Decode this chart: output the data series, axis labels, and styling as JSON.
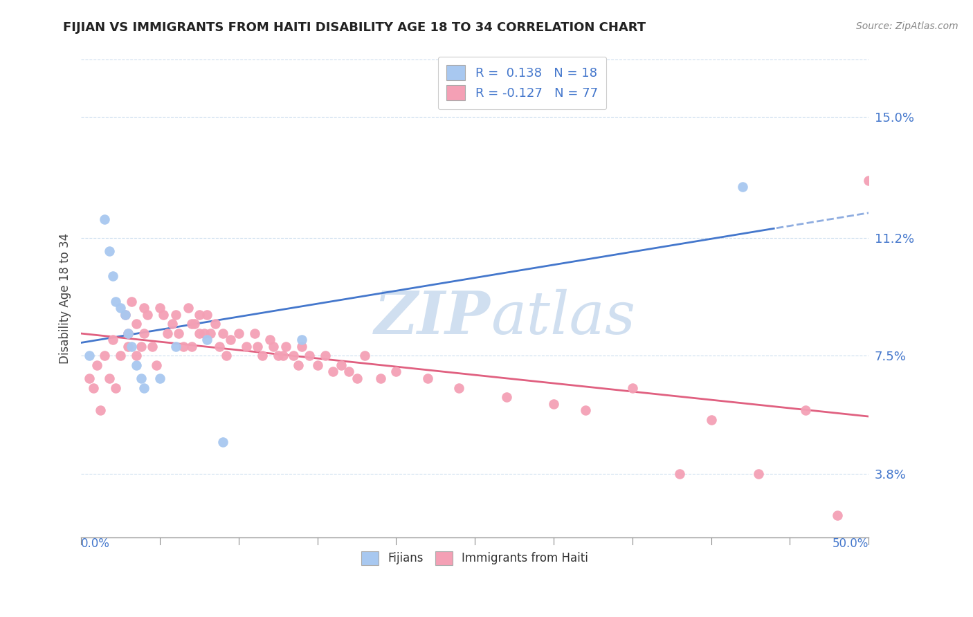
{
  "title": "FIJIAN VS IMMIGRANTS FROM HAITI DISABILITY AGE 18 TO 34 CORRELATION CHART",
  "source": "Source: ZipAtlas.com",
  "ylabel": "Disability Age 18 to 34",
  "ytick_labels": [
    "3.8%",
    "7.5%",
    "11.2%",
    "15.0%"
  ],
  "ytick_values": [
    0.038,
    0.075,
    0.112,
    0.15
  ],
  "xlim": [
    0.0,
    0.5
  ],
  "ylim": [
    0.018,
    0.168
  ],
  "legend_r1": "R =  0.138",
  "legend_n1": "N = 18",
  "legend_r2": "R = -0.127",
  "legend_n2": "N = 77",
  "fijian_color": "#a8c8f0",
  "haiti_color": "#f4a0b5",
  "fijian_trend_color": "#4477cc",
  "haiti_trend_color": "#e06080",
  "watermark_color": "#d0dff0",
  "fijians_x": [
    0.005,
    0.015,
    0.018,
    0.02,
    0.022,
    0.025,
    0.028,
    0.03,
    0.032,
    0.035,
    0.038,
    0.04,
    0.05,
    0.06,
    0.08,
    0.09,
    0.14,
    0.42
  ],
  "fijians_y": [
    0.075,
    0.118,
    0.108,
    0.1,
    0.092,
    0.09,
    0.088,
    0.082,
    0.078,
    0.072,
    0.068,
    0.065,
    0.068,
    0.078,
    0.08,
    0.048,
    0.08,
    0.128
  ],
  "haiti_x": [
    0.005,
    0.008,
    0.01,
    0.012,
    0.015,
    0.018,
    0.02,
    0.022,
    0.025,
    0.028,
    0.03,
    0.03,
    0.032,
    0.035,
    0.035,
    0.038,
    0.04,
    0.04,
    0.042,
    0.045,
    0.048,
    0.05,
    0.052,
    0.055,
    0.058,
    0.06,
    0.062,
    0.065,
    0.068,
    0.07,
    0.07,
    0.072,
    0.075,
    0.075,
    0.078,
    0.08,
    0.082,
    0.085,
    0.088,
    0.09,
    0.092,
    0.095,
    0.1,
    0.105,
    0.11,
    0.112,
    0.115,
    0.12,
    0.122,
    0.125,
    0.128,
    0.13,
    0.135,
    0.138,
    0.14,
    0.145,
    0.15,
    0.155,
    0.16,
    0.165,
    0.17,
    0.175,
    0.18,
    0.19,
    0.2,
    0.22,
    0.24,
    0.27,
    0.3,
    0.32,
    0.35,
    0.38,
    0.4,
    0.43,
    0.46,
    0.48,
    0.5
  ],
  "haiti_y": [
    0.068,
    0.065,
    0.072,
    0.058,
    0.075,
    0.068,
    0.08,
    0.065,
    0.075,
    0.088,
    0.082,
    0.078,
    0.092,
    0.085,
    0.075,
    0.078,
    0.09,
    0.082,
    0.088,
    0.078,
    0.072,
    0.09,
    0.088,
    0.082,
    0.085,
    0.088,
    0.082,
    0.078,
    0.09,
    0.085,
    0.078,
    0.085,
    0.082,
    0.088,
    0.082,
    0.088,
    0.082,
    0.085,
    0.078,
    0.082,
    0.075,
    0.08,
    0.082,
    0.078,
    0.082,
    0.078,
    0.075,
    0.08,
    0.078,
    0.075,
    0.075,
    0.078,
    0.075,
    0.072,
    0.078,
    0.075,
    0.072,
    0.075,
    0.07,
    0.072,
    0.07,
    0.068,
    0.075,
    0.068,
    0.07,
    0.068,
    0.065,
    0.062,
    0.06,
    0.058,
    0.065,
    0.038,
    0.055,
    0.038,
    0.058,
    0.025,
    0.13
  ]
}
